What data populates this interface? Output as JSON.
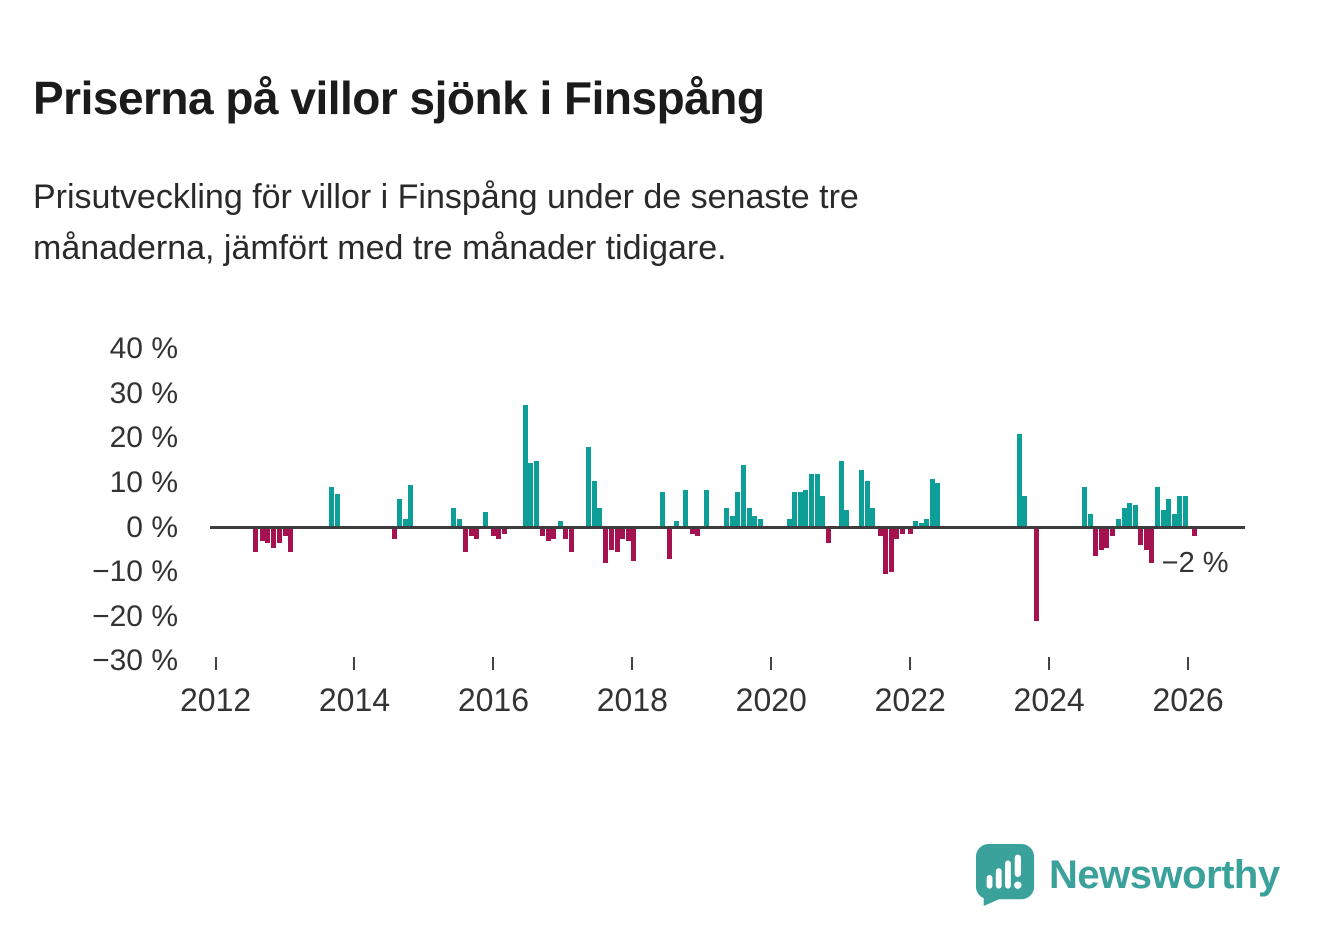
{
  "chart_data": {
    "type": "bar",
    "title": "Priserna på villor sjönk i Finspång",
    "subtitle_lines": [
      "Prisutveckling för villor i Finspång under de senaste tre",
      "månaderna, jämfört med tre månader tidigare."
    ],
    "xlabel": "",
    "ylabel": "",
    "ylim": [
      -30,
      40
    ],
    "xlim": [
      2011.92,
      2026.82
    ],
    "grid": false,
    "legend": false,
    "colors": {
      "positive": "#0d9f97",
      "negative": "#a4134f"
    },
    "yticks": [
      {
        "v": 40,
        "label": "40 %"
      },
      {
        "v": 30,
        "label": "30 %"
      },
      {
        "v": 20,
        "label": "20 %"
      },
      {
        "v": 10,
        "label": "10 %"
      },
      {
        "v": 0,
        "label": "0 %"
      },
      {
        "v": -10,
        "label": "−10 %"
      },
      {
        "v": -20,
        "label": "−20 %"
      },
      {
        "v": -30,
        "label": "−30 %"
      }
    ],
    "xticks": [
      {
        "v": 2012,
        "label": "2012"
      },
      {
        "v": 2014,
        "label": "2014"
      },
      {
        "v": 2016,
        "label": "2016"
      },
      {
        "v": 2018,
        "label": "2018"
      },
      {
        "v": 2020,
        "label": "2020"
      },
      {
        "v": 2022,
        "label": "2022"
      },
      {
        "v": 2024,
        "label": "2024"
      },
      {
        "v": 2026,
        "label": "2026"
      }
    ],
    "annotation": {
      "label": "−2 %",
      "x": 2025.62,
      "v": -4.3
    },
    "points": [
      [
        2012.58,
        -5.5
      ],
      [
        2012.67,
        -3.0
      ],
      [
        2012.75,
        -3.5
      ],
      [
        2012.83,
        -4.5
      ],
      [
        2012.92,
        -3.5
      ],
      [
        2013.0,
        -2.0
      ],
      [
        2013.08,
        -5.5
      ],
      [
        2013.67,
        9.0
      ],
      [
        2013.75,
        7.5
      ],
      [
        2014.57,
        -2.5
      ],
      [
        2014.65,
        6.5
      ],
      [
        2014.73,
        2.0
      ],
      [
        2014.81,
        9.5
      ],
      [
        2015.43,
        4.5
      ],
      [
        2015.51,
        2.0
      ],
      [
        2015.6,
        -5.5
      ],
      [
        2015.68,
        -2.0
      ],
      [
        2015.76,
        -2.5
      ],
      [
        2015.89,
        3.5
      ],
      [
        2016.0,
        -2.0
      ],
      [
        2016.08,
        -2.5
      ],
      [
        2016.16,
        -1.5
      ],
      [
        2016.46,
        27.5
      ],
      [
        2016.54,
        14.5
      ],
      [
        2016.62,
        15.0
      ],
      [
        2016.71,
        -2.0
      ],
      [
        2016.79,
        -3.0
      ],
      [
        2016.87,
        -2.5
      ],
      [
        2016.96,
        1.5
      ],
      [
        2017.04,
        -2.5
      ],
      [
        2017.12,
        -5.5
      ],
      [
        2017.37,
        18.0
      ],
      [
        2017.45,
        10.5
      ],
      [
        2017.53,
        4.5
      ],
      [
        2017.62,
        -8.0
      ],
      [
        2017.7,
        -5.0
      ],
      [
        2017.78,
        -5.5
      ],
      [
        2017.86,
        -2.5
      ],
      [
        2017.94,
        -3.0
      ],
      [
        2018.02,
        -7.5
      ],
      [
        2018.43,
        8.0
      ],
      [
        2018.53,
        -7.0
      ],
      [
        2018.64,
        1.5
      ],
      [
        2018.76,
        8.5
      ],
      [
        2018.86,
        -1.5
      ],
      [
        2018.94,
        -2.0
      ],
      [
        2019.07,
        8.5
      ],
      [
        2019.36,
        4.5
      ],
      [
        2019.44,
        2.5
      ],
      [
        2019.52,
        8.0
      ],
      [
        2019.6,
        14.0
      ],
      [
        2019.68,
        4.5
      ],
      [
        2019.76,
        2.5
      ],
      [
        2019.84,
        2.0
      ],
      [
        2020.26,
        2.0
      ],
      [
        2020.34,
        8.0
      ],
      [
        2020.42,
        8.0
      ],
      [
        2020.5,
        8.5
      ],
      [
        2020.58,
        12.0
      ],
      [
        2020.66,
        12.0
      ],
      [
        2020.74,
        7.0
      ],
      [
        2020.83,
        -3.5
      ],
      [
        2021.01,
        15.0
      ],
      [
        2021.09,
        4.0
      ],
      [
        2021.3,
        13.0
      ],
      [
        2021.38,
        10.5
      ],
      [
        2021.46,
        4.5
      ],
      [
        2021.57,
        -2.0
      ],
      [
        2021.65,
        -10.5
      ],
      [
        2021.73,
        -10.0
      ],
      [
        2021.81,
        -2.5
      ],
      [
        2021.89,
        -1.5
      ],
      [
        2022.0,
        -1.5
      ],
      [
        2022.08,
        1.5
      ],
      [
        2022.16,
        1.0
      ],
      [
        2022.24,
        2.0
      ],
      [
        2022.32,
        11.0
      ],
      [
        2022.4,
        10.0
      ],
      [
        2023.57,
        21.0
      ],
      [
        2023.65,
        7.0
      ],
      [
        2023.82,
        -21.0
      ],
      [
        2024.51,
        9.0
      ],
      [
        2024.59,
        3.0
      ],
      [
        2024.67,
        -6.5
      ],
      [
        2024.75,
        -5.0
      ],
      [
        2024.83,
        -4.5
      ],
      [
        2024.91,
        -2.0
      ],
      [
        2025.0,
        2.0
      ],
      [
        2025.08,
        4.5
      ],
      [
        2025.16,
        5.5
      ],
      [
        2025.24,
        5.0
      ],
      [
        2025.32,
        -4.0
      ],
      [
        2025.4,
        -5.0
      ],
      [
        2025.48,
        -8.0
      ],
      [
        2025.56,
        9.0
      ],
      [
        2025.64,
        4.0
      ],
      [
        2025.72,
        6.5
      ],
      [
        2025.8,
        3.0
      ],
      [
        2025.88,
        7.0
      ],
      [
        2025.96,
        7.0
      ],
      [
        2026.1,
        -2.0
      ]
    ]
  },
  "branding": {
    "name": "Newsworthy",
    "color": "#3aa19b"
  }
}
